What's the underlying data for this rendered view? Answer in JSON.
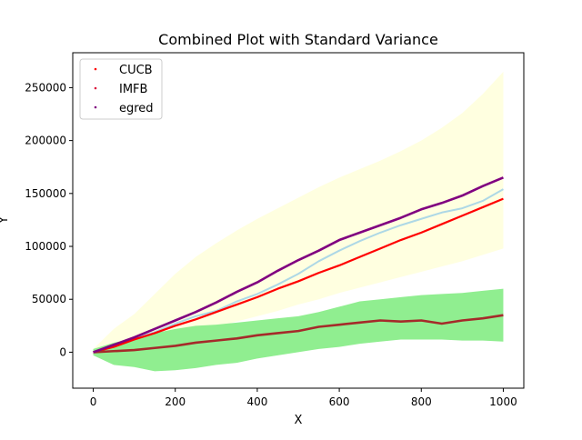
{
  "chart_data": {
    "type": "line",
    "title": "Combined Plot with Standard Variance",
    "xlabel": "X",
    "ylabel": "Y",
    "xlim": [
      -50,
      1050
    ],
    "ylim": [
      -34000,
      283000
    ],
    "x_ticks": [
      0,
      200,
      400,
      600,
      800,
      1000
    ],
    "x_tick_labels": [
      "0",
      "200",
      "400",
      "600",
      "800",
      "1000"
    ],
    "y_ticks": [
      0,
      50000,
      100000,
      150000,
      200000,
      250000
    ],
    "y_tick_labels": [
      "0",
      "50000",
      "100000",
      "150000",
      "200000",
      "250000"
    ],
    "grid": false,
    "legend": {
      "position": "top-left",
      "entries": [
        {
          "label": "CUCB",
          "color": "#ff0000"
        },
        {
          "label": "IMFB",
          "color": "#dc143c"
        },
        {
          "label": "egred",
          "color": "#800080"
        }
      ]
    },
    "bands": [
      {
        "color": "#ffffe0",
        "x": [
          0,
          50,
          100,
          150,
          200,
          250,
          300,
          350,
          400,
          450,
          500,
          550,
          600,
          650,
          700,
          750,
          800,
          850,
          900,
          950,
          1000
        ],
        "lower": [
          -2000,
          2000,
          6000,
          10000,
          14000,
          19000,
          24000,
          29000,
          34000,
          39000,
          45000,
          50000,
          56000,
          61000,
          66000,
          71000,
          76000,
          81000,
          86000,
          92000,
          98000
        ],
        "upper": [
          3000,
          22000,
          36000,
          55000,
          74000,
          90000,
          103000,
          115000,
          126000,
          136000,
          146000,
          156000,
          165000,
          173000,
          181000,
          190000,
          200000,
          212000,
          226000,
          244000,
          265000
        ]
      },
      {
        "color": "#90ee90",
        "x": [
          0,
          50,
          100,
          150,
          200,
          250,
          300,
          350,
          400,
          450,
          500,
          550,
          600,
          650,
          700,
          750,
          800,
          850,
          900,
          950,
          1000
        ],
        "lower": [
          -3000,
          -12000,
          -14000,
          -18000,
          -17000,
          -15000,
          -12000,
          -10000,
          -6000,
          -3000,
          0,
          3000,
          5000,
          8000,
          10000,
          12000,
          12000,
          12000,
          11000,
          11000,
          10000
        ],
        "upper": [
          3000,
          9000,
          13000,
          18000,
          22000,
          25000,
          26000,
          28000,
          30000,
          32000,
          34000,
          38000,
          43000,
          48000,
          50000,
          52000,
          54000,
          55000,
          56000,
          58000,
          60000
        ]
      }
    ],
    "series": [
      {
        "name": "",
        "color": "#add8e6",
        "width": 2,
        "x": [
          0,
          50,
          100,
          150,
          200,
          250,
          300,
          350,
          400,
          450,
          500,
          550,
          600,
          650,
          700,
          750,
          800,
          850,
          900,
          950,
          1000
        ],
        "values": [
          0,
          6000,
          13000,
          19000,
          27000,
          34000,
          39000,
          48000,
          55000,
          64000,
          74000,
          86000,
          96000,
          105000,
          113000,
          120000,
          126000,
          132000,
          136000,
          143000,
          154000
        ]
      },
      {
        "name": "",
        "color": "#90ee90",
        "width": 1.6,
        "x": [
          0,
          50,
          100,
          150,
          200,
          250,
          300,
          350,
          400,
          450,
          500,
          550,
          600,
          650,
          700,
          750,
          800,
          850,
          900,
          950,
          1000
        ],
        "values": [
          0,
          2000,
          4000,
          6000,
          10000,
          15000,
          14000,
          18000,
          20000,
          22000,
          23000,
          25000,
          27000,
          28000,
          29000,
          30000,
          31000,
          31000,
          32000,
          33000,
          34000
        ]
      },
      {
        "name": "CUCB",
        "color": "#ff0000",
        "width": 2.2,
        "x": [
          0,
          50,
          100,
          150,
          200,
          250,
          300,
          350,
          400,
          450,
          500,
          550,
          600,
          650,
          700,
          750,
          800,
          850,
          900,
          950,
          1000
        ],
        "values": [
          0,
          5000,
          12000,
          18000,
          25000,
          31000,
          38000,
          45000,
          52000,
          60000,
          67000,
          75000,
          82000,
          90000,
          98000,
          106000,
          113000,
          121000,
          129000,
          137000,
          145000
        ]
      },
      {
        "name": "IMFB",
        "color": "#a52a2a",
        "width": 2.6,
        "x": [
          0,
          50,
          100,
          150,
          200,
          250,
          300,
          350,
          400,
          450,
          500,
          550,
          600,
          650,
          700,
          750,
          800,
          850,
          900,
          950,
          1000
        ],
        "values": [
          0,
          1000,
          2000,
          4000,
          6000,
          9000,
          11000,
          13000,
          16000,
          18000,
          20000,
          24000,
          26000,
          28000,
          30000,
          29000,
          30000,
          27000,
          30000,
          32000,
          35000
        ]
      },
      {
        "name": "egred",
        "color": "#800080",
        "width": 2.6,
        "x": [
          0,
          50,
          100,
          150,
          200,
          250,
          300,
          350,
          400,
          450,
          500,
          550,
          600,
          650,
          700,
          750,
          800,
          850,
          900,
          950,
          1000
        ],
        "values": [
          0,
          7000,
          14000,
          22000,
          30000,
          38000,
          47000,
          57000,
          66000,
          77000,
          87000,
          96000,
          106000,
          113000,
          120000,
          127000,
          135000,
          141000,
          148000,
          157000,
          165000
        ]
      }
    ]
  }
}
